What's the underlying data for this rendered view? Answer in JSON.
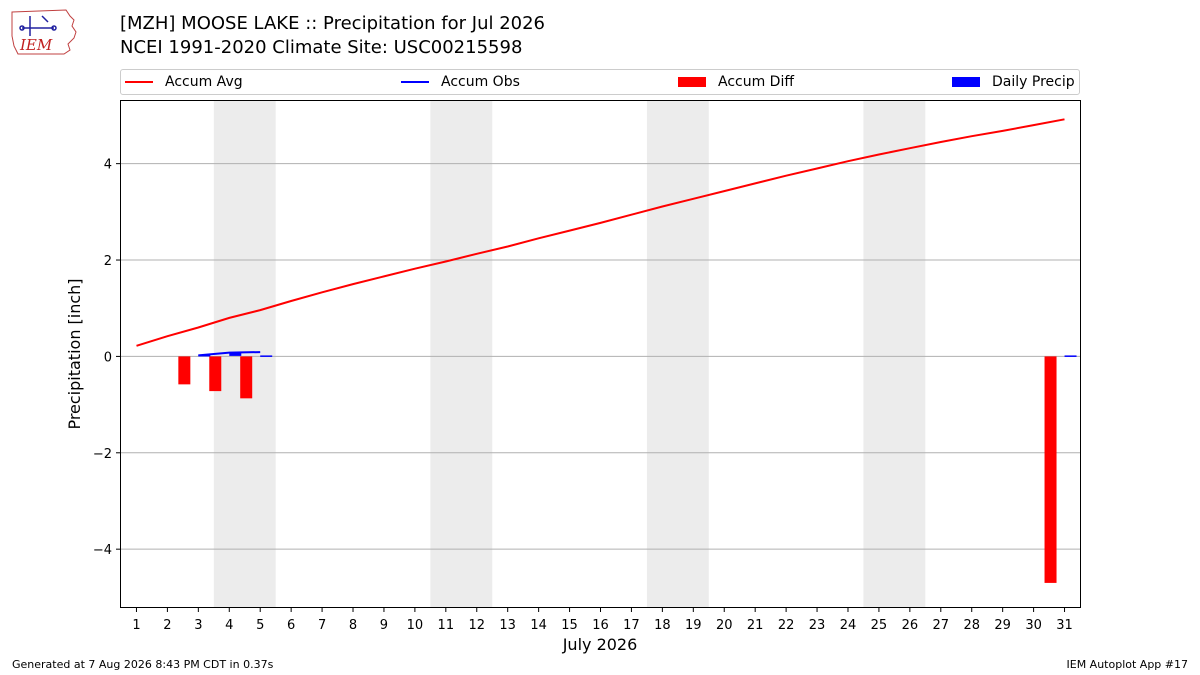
{
  "title_line1": "[MZH] MOOSE LAKE :: Precipitation for Jul 2026",
  "title_line2": "NCEI 1991-2020 Climate Site: USC00215598",
  "logo_text": "IEM",
  "footer_left": "Generated at 7 Aug 2026 8:43 PM CDT in 0.37s",
  "footer_right": "IEM Autoplot App #17",
  "chart_data": {
    "type": "line",
    "xlabel": "July 2026",
    "ylabel": "Precipitation [inch]",
    "xlim": [
      0.5,
      31.5
    ],
    "ylim": [
      -5.2,
      5.3
    ],
    "grid": "horizontal",
    "legend_position": "top",
    "x_ticks": [
      1,
      2,
      3,
      4,
      5,
      6,
      7,
      8,
      9,
      10,
      11,
      12,
      13,
      14,
      15,
      16,
      17,
      18,
      19,
      20,
      21,
      22,
      23,
      24,
      25,
      26,
      27,
      28,
      29,
      30,
      31
    ],
    "y_ticks": [
      -4,
      -2,
      0,
      2,
      4
    ],
    "y_tick_labels": [
      "−4",
      "−2",
      "0",
      "2",
      "4"
    ],
    "weekend_shading": [
      [
        3.5,
        5.5
      ],
      [
        10.5,
        12.5
      ],
      [
        17.5,
        19.5
      ],
      [
        24.5,
        26.5
      ]
    ],
    "legend": [
      {
        "label": "Accum Avg",
        "kind": "line",
        "color": "#ff0000"
      },
      {
        "label": "Accum Obs",
        "kind": "line",
        "color": "#0000ff"
      },
      {
        "label": "Accum Diff",
        "kind": "box",
        "color": "#ff0000"
      },
      {
        "label": "Daily Precip",
        "kind": "box",
        "color": "#0000ff"
      }
    ],
    "series": [
      {
        "name": "Accum Avg",
        "type": "line",
        "color": "#ff0000",
        "x": [
          1,
          2,
          3,
          4,
          5,
          6,
          7,
          8,
          9,
          10,
          11,
          12,
          13,
          14,
          15,
          16,
          17,
          18,
          19,
          20,
          21,
          22,
          23,
          24,
          25,
          26,
          27,
          28,
          29,
          30,
          31
        ],
        "values": [
          0.22,
          0.42,
          0.6,
          0.8,
          0.96,
          1.15,
          1.33,
          1.5,
          1.66,
          1.82,
          1.97,
          2.13,
          2.28,
          2.45,
          2.61,
          2.77,
          2.94,
          3.11,
          3.27,
          3.43,
          3.59,
          3.75,
          3.9,
          4.05,
          4.19,
          4.32,
          4.45,
          4.57,
          4.68,
          4.8,
          4.92
        ]
      },
      {
        "name": "Accum Obs",
        "type": "line",
        "color": "#0000ff",
        "x": [
          3,
          4,
          5
        ],
        "values": [
          0.02,
          0.08,
          0.09
        ]
      },
      {
        "name": "Accum Diff",
        "type": "bar",
        "color": "#ff0000",
        "x": [
          3,
          4,
          5,
          31
        ],
        "values": [
          -0.58,
          -0.72,
          -0.87,
          -4.7
        ]
      },
      {
        "name": "Daily Precip",
        "type": "bar",
        "color": "#0000ff",
        "x": [
          3,
          4,
          5,
          31
        ],
        "values": [
          0.02,
          0.06,
          0.01,
          0.01
        ]
      }
    ]
  }
}
